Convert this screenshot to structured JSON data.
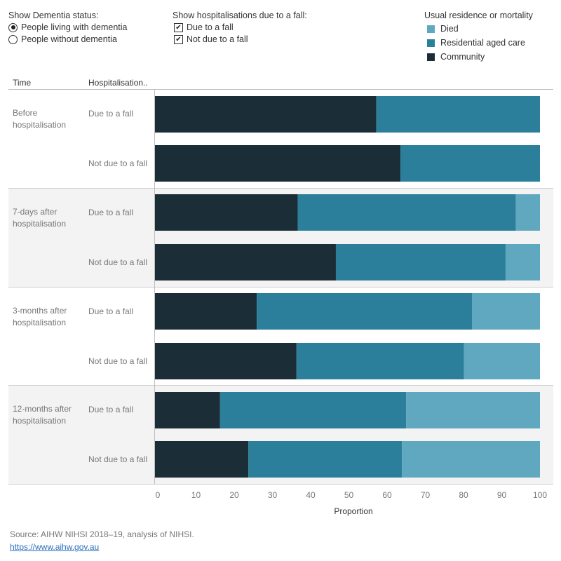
{
  "controls": {
    "dementia": {
      "title": "Show Dementia status:",
      "options": [
        {
          "label": "People living with dementia",
          "selected": true
        },
        {
          "label": "People without dementia",
          "selected": false
        }
      ]
    },
    "fall": {
      "title": "Show hospitalisations due to a fall:",
      "options": [
        {
          "label": "Due to a fall",
          "checked": true
        },
        {
          "label": "Not due to a fall",
          "checked": true
        }
      ]
    }
  },
  "legend": {
    "title": "Usual residence or mortality",
    "items": [
      {
        "label": "Died",
        "color": "#5fa8c0"
      },
      {
        "label": "Residential aged care",
        "color": "#2c7f9a"
      },
      {
        "label": "Community",
        "color": "#1b2e38"
      }
    ]
  },
  "table_headers": {
    "time": "Time",
    "hosp": "Hospitalisation.."
  },
  "time_groups": [
    {
      "line1": "Before",
      "line2": "hospitalisation"
    },
    {
      "line1": "7-days after",
      "line2": "hospitalisation"
    },
    {
      "line1": "3-months after",
      "line2": "hospitalisation"
    },
    {
      "line1": "12-months after",
      "line2": "hospitalisation"
    }
  ],
  "chart_data": {
    "type": "bar",
    "orientation": "horizontal",
    "stacked": true,
    "xlabel": "Proportion",
    "xlim": [
      0,
      100
    ],
    "xticks": [
      "0",
      "10",
      "20",
      "30",
      "40",
      "50",
      "60",
      "70",
      "80",
      "90",
      "100"
    ],
    "categories": [
      "Before hospitalisation | Due to a fall",
      "Before hospitalisation | Not due to a fall",
      "7-days after hospitalisation | Due to a fall",
      "7-days after hospitalisation | Not due to a fall",
      "3-months after hospitalisation | Due to a fall",
      "3-months after hospitalisation | Not due to a fall",
      "12-months after hospitalisation | Due to a fall",
      "12-months after hospitalisation | Not due to a fall"
    ],
    "row_labels": [
      "Due to a fall",
      "Not due to a fall",
      "Due to a fall",
      "Not due to a fall",
      "Due to a fall",
      "Not due to a fall",
      "Due to a fall",
      "Not due to a fall"
    ],
    "series": [
      {
        "name": "Community",
        "color": "#1b2e38",
        "values": [
          57.2,
          63.5,
          36.6,
          46.6,
          25.9,
          36.3,
          16.3,
          23.7
        ]
      },
      {
        "name": "Residential aged care",
        "color": "#2c7f9a",
        "values": [
          42.8,
          36.5,
          57.1,
          44.4,
          56.3,
          43.8,
          48.7,
          40.2
        ]
      },
      {
        "name": "Died",
        "color": "#5fa8c0",
        "values": [
          0,
          0,
          6.3,
          9.0,
          17.8,
          19.9,
          35.0,
          36.1
        ]
      }
    ]
  },
  "footer": {
    "source": "Source: AIHW NIHSI 2018–19, analysis of NIHSI.",
    "link": "https://www.aihw.gov.au"
  }
}
